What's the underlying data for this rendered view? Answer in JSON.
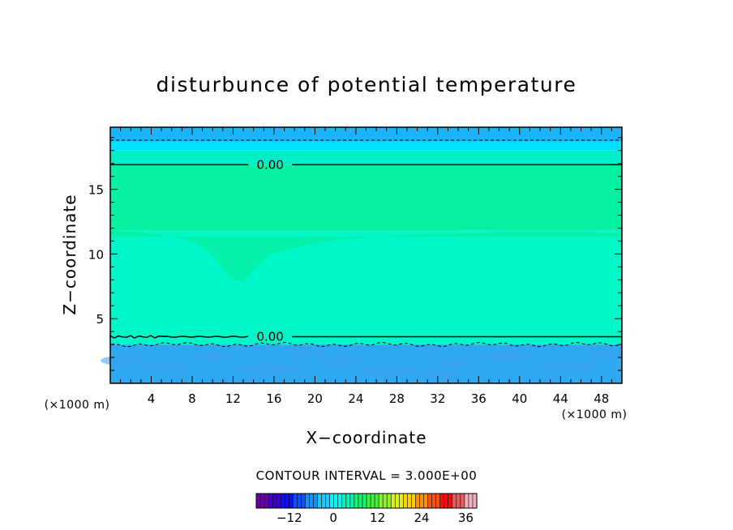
{
  "chart_data": {
    "type": "heatmap",
    "title": "disturbunce of potential temperature",
    "xlabel": "X−coordinate",
    "ylabel": "Z−coordinate",
    "x_unit": "(×1000 m)",
    "y_unit": "(×1000 m)",
    "xlim": [
      0,
      50
    ],
    "ylim": [
      0,
      19.8
    ],
    "x_ticks": [
      "4",
      "8",
      "12",
      "16",
      "20",
      "24",
      "28",
      "32",
      "36",
      "40",
      "44",
      "48"
    ],
    "y_ticks": [
      "5",
      "10",
      "15"
    ],
    "bands": [
      {
        "z_range": [
          0,
          3.0
        ],
        "color": "#2fa8f2"
      },
      {
        "z_range": [
          3.0,
          11.8
        ],
        "color": "#00f8c8"
      },
      {
        "z_range": [
          11.8,
          16.9
        ],
        "color": "#06f0a4"
      },
      {
        "z_range": [
          16.9,
          18.0
        ],
        "color": "#00eec8"
      },
      {
        "z_range": [
          18.0,
          18.7
        ],
        "color": "#00e0ff"
      },
      {
        "z_range": [
          18.7,
          19.8
        ],
        "color": "#1ab4f8"
      }
    ],
    "contours": [
      {
        "level": "0.00",
        "z": 16.9,
        "style": "solid",
        "label_x": 13.8
      },
      {
        "level": "0.00",
        "z": 3.6,
        "style": "solid",
        "label_x": 13.8
      },
      {
        "z": 18.8,
        "style": "dashed"
      },
      {
        "z": 3.0,
        "style": "dashed"
      }
    ],
    "contour_interval": "CONTOUR INTERVAL = 3.000E+00",
    "colorbar": {
      "ticks": [
        "−12",
        "0",
        "12",
        "24",
        "36"
      ],
      "tick_values": [
        -12,
        0,
        12,
        24,
        36
      ],
      "range": [
        -21,
        39
      ],
      "colors": [
        "#6a00a8",
        "#3c00c8",
        "#1010e8",
        "#1050f8",
        "#1890f8",
        "#20c8f8",
        "#10f0f0",
        "#10f0b0",
        "#20f070",
        "#40f040",
        "#90f030",
        "#d8f020",
        "#f8d010",
        "#f89010",
        "#f85010",
        "#f01010",
        "#e06060",
        "#f0b0c0"
      ]
    }
  }
}
